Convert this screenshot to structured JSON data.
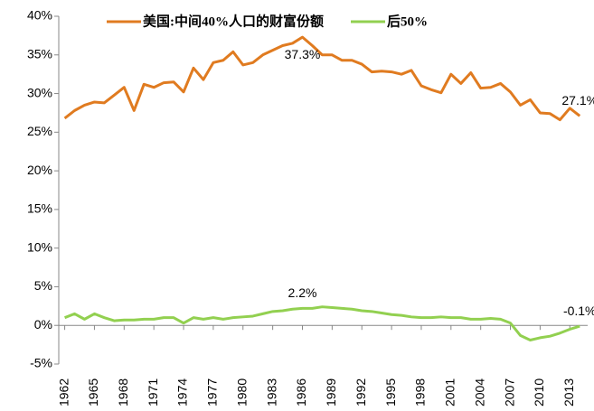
{
  "chart_data": {
    "type": "line",
    "x": [
      1962,
      1963,
      1964,
      1965,
      1966,
      1967,
      1968,
      1969,
      1970,
      1971,
      1972,
      1973,
      1974,
      1975,
      1976,
      1977,
      1978,
      1979,
      1980,
      1981,
      1982,
      1983,
      1984,
      1985,
      1986,
      1987,
      1988,
      1989,
      1990,
      1991,
      1992,
      1993,
      1994,
      1995,
      1996,
      1997,
      1998,
      1999,
      2000,
      2001,
      2002,
      2003,
      2004,
      2005,
      2006,
      2007,
      2008,
      2009,
      2010,
      2011,
      2012,
      2013,
      2014
    ],
    "series": [
      {
        "name": "美国:中间40%人口的财富份额",
        "color": "#e07b20",
        "values": [
          26.8,
          27.8,
          28.5,
          28.9,
          28.8,
          29.8,
          30.8,
          27.8,
          31.2,
          30.8,
          31.4,
          31.5,
          30.2,
          33.3,
          31.8,
          34.0,
          34.3,
          35.4,
          33.7,
          34.0,
          35.0,
          35.6,
          36.2,
          36.5,
          37.3,
          36.2,
          35.0,
          35.0,
          34.3,
          34.3,
          33.8,
          32.8,
          32.9,
          32.8,
          32.5,
          33.0,
          31.0,
          30.5,
          30.1,
          32.5,
          31.3,
          32.7,
          30.7,
          30.8,
          31.3,
          30.2,
          28.5,
          29.2,
          27.5,
          27.4,
          26.6,
          28.1,
          27.1
        ],
        "value_labels": [
          null,
          null,
          null,
          null,
          null,
          null,
          null,
          null,
          null,
          null,
          null,
          null,
          null,
          null,
          null,
          null,
          null,
          null,
          null,
          null,
          null,
          null,
          null,
          null,
          "37.3%",
          null,
          null,
          null,
          null,
          null,
          null,
          null,
          null,
          null,
          null,
          null,
          null,
          null,
          null,
          null,
          null,
          null,
          null,
          null,
          null,
          null,
          null,
          null,
          null,
          null,
          null,
          null,
          "27.1%"
        ]
      },
      {
        "name": "后50%",
        "color": "#92d050",
        "values": [
          1.0,
          1.5,
          0.8,
          1.5,
          1.0,
          0.6,
          0.7,
          0.7,
          0.8,
          0.8,
          1.0,
          1.0,
          0.3,
          1.0,
          0.8,
          1.0,
          0.8,
          1.0,
          1.1,
          1.2,
          1.5,
          1.8,
          1.9,
          2.1,
          2.2,
          2.2,
          2.4,
          2.3,
          2.2,
          2.1,
          1.9,
          1.8,
          1.6,
          1.4,
          1.3,
          1.1,
          1.0,
          1.0,
          1.1,
          1.0,
          1.0,
          0.8,
          0.8,
          0.9,
          0.8,
          0.3,
          -1.3,
          -1.9,
          -1.6,
          -1.4,
          -1.0,
          -0.5,
          -0.1
        ],
        "value_labels": [
          null,
          null,
          null,
          null,
          null,
          null,
          null,
          null,
          null,
          null,
          null,
          null,
          null,
          null,
          null,
          null,
          null,
          null,
          null,
          null,
          null,
          null,
          null,
          null,
          "2.2%",
          null,
          null,
          null,
          null,
          null,
          null,
          null,
          null,
          null,
          null,
          null,
          null,
          null,
          null,
          null,
          null,
          null,
          null,
          null,
          null,
          null,
          null,
          null,
          null,
          null,
          null,
          null,
          "-0.1%"
        ]
      }
    ],
    "xlim": [
      1961.4,
      2014.8
    ],
    "xticks": [
      1962,
      1965,
      1968,
      1971,
      1974,
      1977,
      1980,
      1983,
      1986,
      1989,
      1992,
      1995,
      1998,
      2001,
      2004,
      2007,
      2010,
      2013
    ],
    "ylim": [
      -5,
      40
    ],
    "yticks": [
      {
        "value": -5,
        "label": "-5%"
      },
      {
        "value": 0,
        "label": "0%"
      },
      {
        "value": 5,
        "label": "5%"
      },
      {
        "value": 10,
        "label": "10%"
      },
      {
        "value": 15,
        "label": "15%"
      },
      {
        "value": 20,
        "label": "20%"
      },
      {
        "value": 25,
        "label": "25%"
      },
      {
        "value": 30,
        "label": "30%"
      },
      {
        "value": 35,
        "label": "35%"
      },
      {
        "value": 40,
        "label": "40%"
      }
    ],
    "grid": false,
    "legend": "top"
  }
}
